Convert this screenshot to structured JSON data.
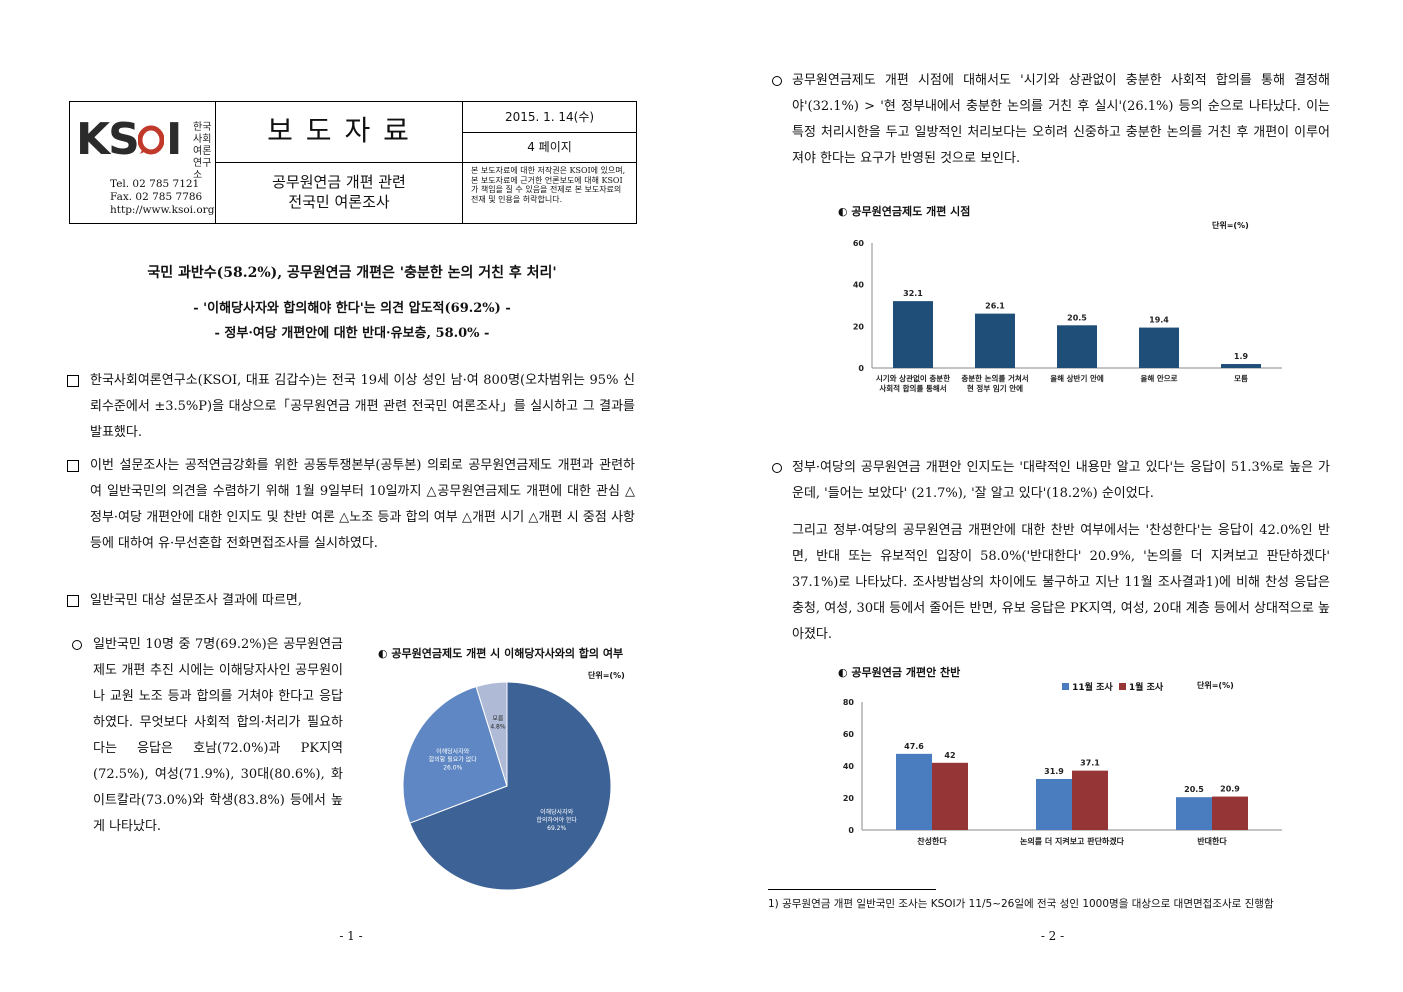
{
  "header": {
    "logo_text": "KSOI",
    "logo_kr": [
      "한국사회",
      "여론",
      "연구소"
    ],
    "tel": "Tel. 02 785 7121",
    "fax": "Fax. 02 785 7786",
    "web": "http://www.ksoi.org",
    "title": "보 도 자 료",
    "subtitle_line1": "공무원연금 개편 관련",
    "subtitle_line2": "전국민 여론조사",
    "date": "2015. 1. 14(수)",
    "pages": "4 페이지",
    "notice": "본 보도자료에 대한 저작권은 KSOI에 있으며, 본 보도자료에 근거한 언론보도에 대해 KSOI가 책임을 질 수 있음을 전제로 본 보도자료의 전재 및 인용을 허락합니다."
  },
  "headline": {
    "main": "국민 과반수(58.2%), 공무원연금 개편은 '충분한 논의 거친 후 처리'",
    "sub1": "- '이해당사자와 합의해야 한다'는 의견 압도적(69.2%) -",
    "sub2": "- 정부·여당 개편안에 대한 반대·유보층, 58.0% -"
  },
  "page1": {
    "para1": "한국사회여론연구소(KSOI, 대표 김갑수)는 전국 19세 이상 성인 남·여 800명(오차범위는 95% 신뢰수준에서 ±3.5%P)을 대상으로「공무원연금 개편 관련 전국민 여론조사」를 실시하고 그 결과를 발표했다.",
    "para2": "이번 설문조사는 공적연금강화를 위한 공동투쟁본부(공투본) 의뢰로 공무원연금제도 개편과 관련하여 일반국민의 의견을 수렴하기 위해 1월 9일부터 10일까지 △공무원연금제도 개편에 대한 관심 △정부·여당 개편안에 대한 인지도 및 찬반 여론 △노조 등과 합의 여부 △개편 시기 △개편 시 중점 사항 등에 대하여 유·무선혼합 전화면접조사를 실시하였다.",
    "para3": "일반국민 대상 설문조사 결과에 따르면,",
    "para4": "일반국민 10명 중 7명(69.2%)은 공무원연금제도 개편 추진 시에는 이해당자사인 공무원이나 교원 노조 등과 합의를 거쳐야 한다고 응답하였다. 무엇보다 사회적 합의·처리가 필요하다는 응답은 호남(72.0%)과 PK지역(72.5%), 여성(71.9%), 30대(80.6%), 화이트칼라(73.0%)와 학생(83.8%) 등에서 높게 나타났다.",
    "page_number": "- 1 -"
  },
  "page2": {
    "para1": "공무원연금제도 개편 시점에 대해서도 '시기와 상관없이 충분한 사회적 합의를 통해 결정해야'(32.1%) > '현 정부내에서 충분한 논의를 거친 후 실시'(26.1%) 등의 순으로 나타났다. 이는 특정 처리시한을 두고 일방적인 처리보다는 오히려 신중하고 충분한 논의를 거친 후 개편이 이루어져야 한다는 요구가 반영된 것으로 보인다.",
    "para2": "정부·여당의 공무원연금 개편안 인지도는 '대략적인 내용만 알고 있다'는 응답이 51.3%로 높은 가운데, '들어는 보았다' (21.7%), '잘 알고 있다'(18.2%) 순이었다.",
    "para3": "그리고 정부·여당의 공무원연금 개편안에 대한 찬반 여부에서는 '찬성한다'는 응답이 42.0%인 반면, 반대 또는 유보적인 입장이 58.0%('반대한다' 20.9%, '논의를 더 지켜보고 판단하겠다' 37.1%)로 나타났다. 조사방법상의 차이에도 불구하고 지난 11월 조사결과1)에 비해 찬성 응답은 충청, 여성, 30대 등에서 줄어든 반면, 유보 응답은 PK지역, 여성, 20대 계층 등에서 상대적으로 높아졌다.",
    "footnote": "1) 공무원연금 개편 일반국민 조사는 KSOI가 11/5~26일에 전국 성인 1000명을 대상으로 대면면접조사로 진행함",
    "page_number": "- 2 -"
  },
  "colors": {
    "bar_blue": "#1f4e79",
    "series_blue": "#4a7cc0",
    "series_red": "#963535",
    "pie_dark": "#3d6296",
    "pie_mid": "#5f87c4",
    "pie_light": "#aebad6"
  },
  "chart_data": [
    {
      "type": "pie",
      "title": "◐ 공무원연금제도 개편 시 이해당자사와의 합의 여부",
      "unit": "단위=(%)",
      "slices": [
        {
          "label": "이해당사자와 합의하여야 한다",
          "value": 69.2,
          "display": "69.2%"
        },
        {
          "label": "이해당사자와 합의할 필요가 없다",
          "value": 26.0,
          "display": "26.0%"
        },
        {
          "label": "모름",
          "value": 4.8,
          "display": "4.8%"
        }
      ]
    },
    {
      "type": "bar",
      "title": "◐ 공무원연금제도 개편 시점",
      "unit": "단위=(%)",
      "categories": [
        [
          "시기와 상관없이 충분한",
          "사회적 합의를 통해서"
        ],
        [
          "충분한 논의를 거쳐서",
          "현 정부 임기 안에"
        ],
        [
          "올해 상반기 안에"
        ],
        [
          "올해 안으로"
        ],
        [
          "모름"
        ]
      ],
      "values": [
        32.1,
        26.1,
        20.5,
        19.4,
        1.9
      ],
      "yticks": [
        0,
        20,
        40,
        60
      ],
      "ylim": [
        0,
        60
      ]
    },
    {
      "type": "bar",
      "title": "◐ 공무원연금 개편안 찬반",
      "unit": "단위=(%)",
      "categories": [
        "찬성한다",
        "논의를 더 지켜보고 판단하겠다",
        "반대한다"
      ],
      "series": [
        {
          "name": "11월 조사",
          "values": [
            47.6,
            31.9,
            20.5
          ],
          "labels": [
            "47.6",
            "31.9",
            "20.5"
          ]
        },
        {
          "name": "1월 조사",
          "values": [
            42.0,
            37.1,
            20.9
          ],
          "labels": [
            "42",
            "37.1",
            "20.9"
          ]
        }
      ],
      "yticks": [
        0,
        20,
        40,
        60,
        80
      ],
      "ylim": [
        0,
        80
      ]
    }
  ]
}
